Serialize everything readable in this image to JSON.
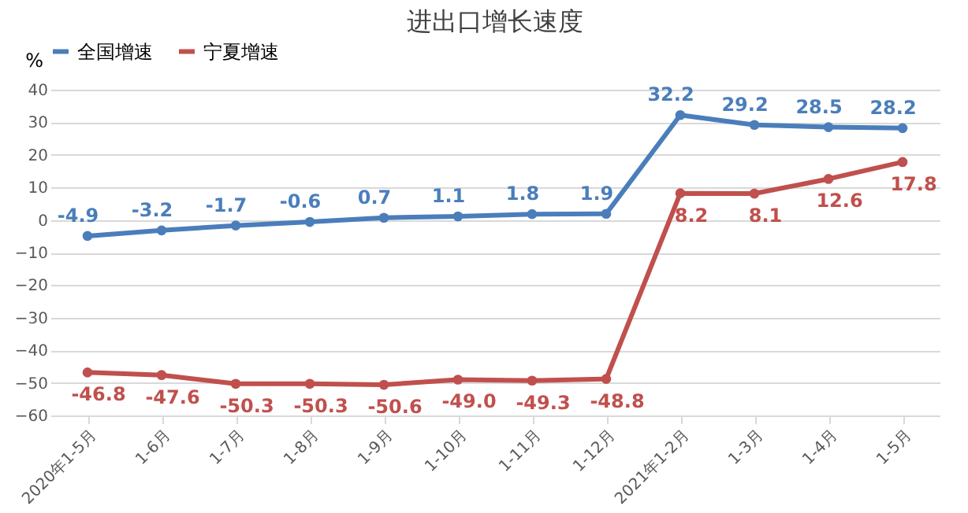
{
  "chart_data": {
    "type": "line",
    "title": "进出口增长速度",
    "ylabel": "%",
    "categories": [
      "2020年1-5月",
      "1-6月",
      "1-7月",
      "1-8月",
      "1-9月",
      "1-10月",
      "1-11月",
      "1-12月",
      "2021年1-2月",
      "1-3月",
      "1-4月",
      "1-5月"
    ],
    "series": [
      {
        "name": "全国增速",
        "color": "#4a7ebb",
        "values": [
          -4.9,
          -3.2,
          -1.7,
          -0.6,
          0.7,
          1.1,
          1.8,
          1.9,
          32.2,
          29.2,
          28.5,
          28.2
        ]
      },
      {
        "name": "宁夏增速",
        "color": "#c0504d",
        "values": [
          -46.8,
          -47.6,
          -50.3,
          -50.3,
          -50.6,
          -49.0,
          -49.3,
          -48.8,
          8.2,
          8.1,
          12.6,
          17.8
        ],
        "value_labels": [
          "-46.8",
          "-47.6",
          "-50.3",
          "-50.3",
          "-50.6",
          "-49.0",
          "-49.3",
          "-48.8",
          "8.2",
          "8.1",
          "12.6",
          "17.8"
        ]
      }
    ],
    "ylim": [
      -60,
      40
    ],
    "yticks": [
      -60,
      -50,
      -40,
      -30,
      -20,
      -10,
      0,
      10,
      20,
      30,
      40
    ],
    "grid": "y",
    "legend": "top",
    "marker": "circle",
    "line_style": "solid",
    "data_labels": true
  }
}
